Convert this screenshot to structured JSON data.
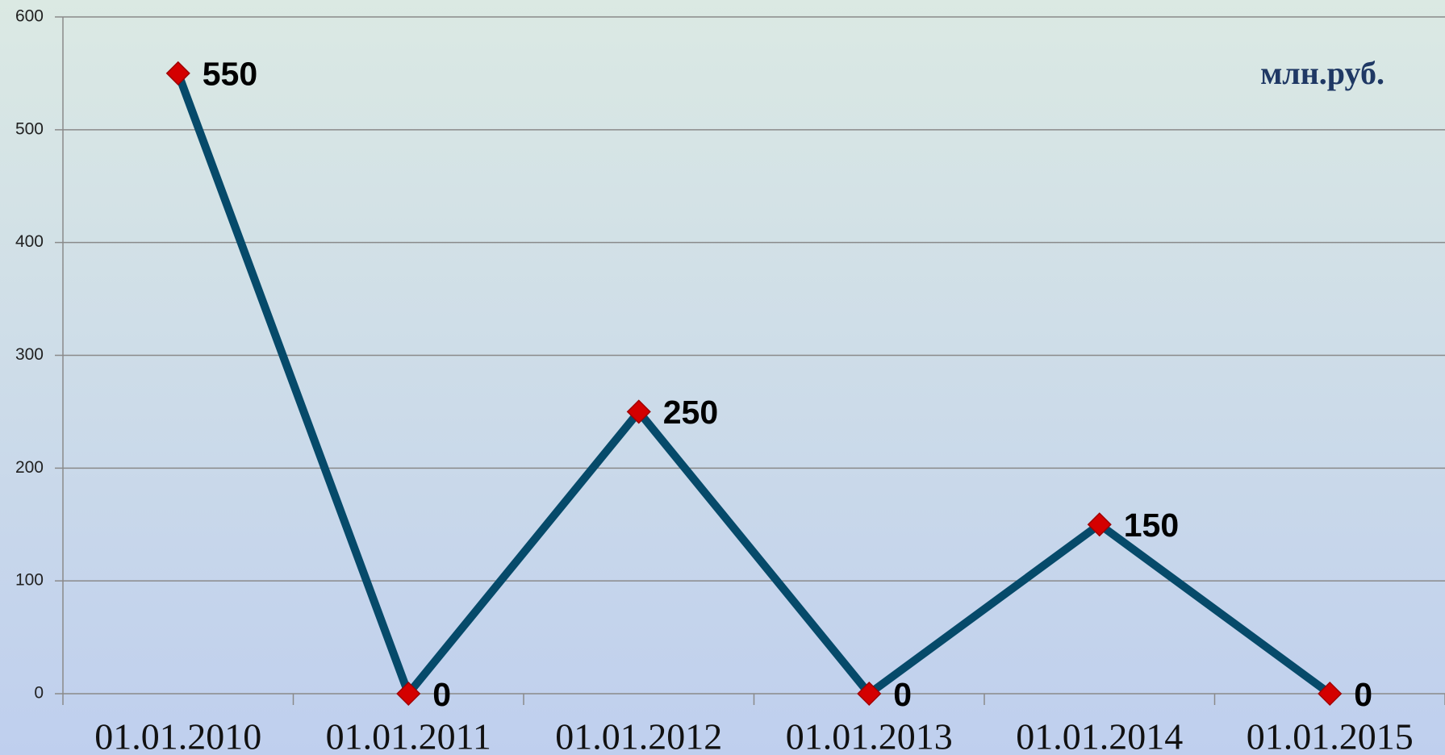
{
  "chart_data": {
    "type": "line",
    "annotation": "млн.руб.",
    "categories": [
      "01.01.2010",
      "01.01.2011",
      "01.01.2012",
      "01.01.2013",
      "01.01.2014",
      "01.01.2015"
    ],
    "values": [
      550,
      0,
      250,
      0,
      150,
      0
    ],
    "color": "#064a6a",
    "marker_color": "#d40000",
    "ylim": [
      0,
      600
    ],
    "yticks": [
      0,
      100,
      200,
      300,
      400,
      500,
      600
    ],
    "grid": true
  }
}
